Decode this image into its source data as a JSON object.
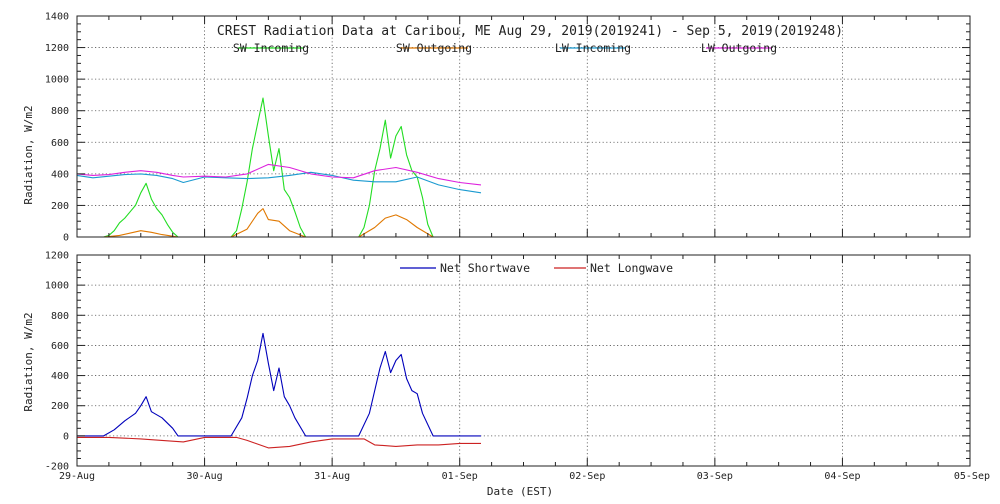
{
  "chart_data": [
    {
      "type": "line",
      "title": "CREST Radiation Data at Caribou, ME   Aug 29, 2019(2019241) - Sep  5, 2019(2019248)",
      "ylabel": "Radiation, W/m2",
      "xlabel": "",
      "ylim": [
        0,
        1400
      ],
      "yticks": [
        0,
        200,
        400,
        600,
        800,
        1000,
        1200,
        1400
      ],
      "xlim": [
        "2019-08-29",
        "2019-09-05"
      ],
      "grid": true,
      "legend_placement": "top",
      "series": [
        {
          "name": "SW Incoming",
          "color": "#22dd22",
          "x": [
            "2019-08-29T05:00",
            "2019-08-29T06:00",
            "2019-08-29T07:00",
            "2019-08-29T08:00",
            "2019-08-29T09:00",
            "2019-08-29T10:00",
            "2019-08-29T11:00",
            "2019-08-29T12:00",
            "2019-08-29T13:00",
            "2019-08-29T14:00",
            "2019-08-29T15:00",
            "2019-08-29T16:00",
            "2019-08-29T17:00",
            "2019-08-29T18:00",
            "2019-08-29T19:00",
            "2019-08-30T05:00",
            "2019-08-30T06:00",
            "2019-08-30T07:00",
            "2019-08-30T08:00",
            "2019-08-30T09:00",
            "2019-08-30T10:00",
            "2019-08-30T11:00",
            "2019-08-30T12:00",
            "2019-08-30T13:00",
            "2019-08-30T14:00",
            "2019-08-30T15:00",
            "2019-08-30T16:00",
            "2019-08-30T17:00",
            "2019-08-30T18:00",
            "2019-08-30T19:00",
            "2019-08-31T05:00",
            "2019-08-31T06:00",
            "2019-08-31T07:00",
            "2019-08-31T08:00",
            "2019-08-31T09:00",
            "2019-08-31T10:00",
            "2019-08-31T11:00",
            "2019-08-31T12:00",
            "2019-08-31T13:00",
            "2019-08-31T14:00",
            "2019-08-31T15:00",
            "2019-08-31T16:00",
            "2019-08-31T17:00",
            "2019-08-31T18:00",
            "2019-08-31T19:00"
          ],
          "values": [
            0,
            10,
            40,
            90,
            120,
            160,
            200,
            280,
            340,
            240,
            180,
            140,
            80,
            30,
            0,
            0,
            40,
            180,
            350,
            560,
            720,
            880,
            640,
            420,
            560,
            300,
            250,
            160,
            60,
            0,
            0,
            60,
            200,
            420,
            560,
            740,
            500,
            640,
            700,
            520,
            420,
            380,
            250,
            80,
            0
          ]
        },
        {
          "name": "SW Outgoing",
          "color": "#e07800",
          "x": [
            "2019-08-29T05:00",
            "2019-08-29T08:00",
            "2019-08-29T10:00",
            "2019-08-29T12:00",
            "2019-08-29T14:00",
            "2019-08-29T16:00",
            "2019-08-29T19:00",
            "2019-08-30T05:00",
            "2019-08-30T08:00",
            "2019-08-30T10:00",
            "2019-08-30T11:00",
            "2019-08-30T12:00",
            "2019-08-30T14:00",
            "2019-08-30T16:00",
            "2019-08-30T19:00",
            "2019-08-31T05:00",
            "2019-08-31T08:00",
            "2019-08-31T10:00",
            "2019-08-31T12:00",
            "2019-08-31T14:00",
            "2019-08-31T16:00",
            "2019-08-31T19:00"
          ],
          "values": [
            0,
            10,
            25,
            40,
            30,
            15,
            0,
            0,
            50,
            150,
            180,
            110,
            100,
            40,
            0,
            0,
            60,
            120,
            140,
            110,
            60,
            0
          ]
        },
        {
          "name": "LW Incoming",
          "color": "#1a9ad0",
          "x": [
            "2019-08-29T00:00",
            "2019-08-29T03:00",
            "2019-08-29T06:00",
            "2019-08-29T09:00",
            "2019-08-29T12:00",
            "2019-08-29T15:00",
            "2019-08-29T18:00",
            "2019-08-29T20:00",
            "2019-08-30T00:00",
            "2019-08-30T04:00",
            "2019-08-30T08:00",
            "2019-08-30T12:00",
            "2019-08-30T16:00",
            "2019-08-30T20:00",
            "2019-08-31T00:00",
            "2019-08-31T04:00",
            "2019-08-31T08:00",
            "2019-08-31T12:00",
            "2019-08-31T16:00",
            "2019-08-31T20:00",
            "2019-09-01T00:00",
            "2019-09-01T04:00"
          ],
          "values": [
            390,
            375,
            385,
            395,
            400,
            390,
            370,
            345,
            380,
            375,
            370,
            375,
            390,
            410,
            390,
            360,
            350,
            350,
            380,
            330,
            300,
            280
          ]
        },
        {
          "name": "LW Outgoing",
          "color": "#dd22dd",
          "x": [
            "2019-08-29T00:00",
            "2019-08-29T03:00",
            "2019-08-29T06:00",
            "2019-08-29T09:00",
            "2019-08-29T12:00",
            "2019-08-29T15:00",
            "2019-08-29T18:00",
            "2019-08-29T20:00",
            "2019-08-30T00:00",
            "2019-08-30T04:00",
            "2019-08-30T08:00",
            "2019-08-30T12:00",
            "2019-08-30T16:00",
            "2019-08-30T20:00",
            "2019-08-31T00:00",
            "2019-08-31T04:00",
            "2019-08-31T08:00",
            "2019-08-31T12:00",
            "2019-08-31T16:00",
            "2019-08-31T20:00",
            "2019-09-01T00:00",
            "2019-09-01T04:00"
          ],
          "values": [
            400,
            390,
            395,
            410,
            420,
            410,
            390,
            380,
            385,
            380,
            400,
            460,
            440,
            400,
            380,
            375,
            420,
            440,
            410,
            370,
            345,
            330
          ]
        }
      ]
    },
    {
      "type": "line",
      "title": "",
      "ylabel": "Radiation, W/m2",
      "xlabel": "Date (EST)",
      "ylim": [
        -200,
        1200
      ],
      "yticks": [
        -200,
        0,
        200,
        400,
        600,
        800,
        1000,
        1200
      ],
      "xlim": [
        "2019-08-29",
        "2019-09-05"
      ],
      "xticks": [
        "2019-08-29",
        "2019-08-30",
        "2019-08-31",
        "2019-09-01",
        "2019-09-02",
        "2019-09-03",
        "2019-09-04",
        "2019-09-05"
      ],
      "xtick_labels": [
        "29-Aug",
        "30-Aug",
        "31-Aug",
        "01-Sep",
        "02-Sep",
        "03-Sep",
        "04-Sep",
        "05-Sep"
      ],
      "grid": true,
      "legend_placement": "top",
      "series": [
        {
          "name": "Net Shortwave",
          "color": "#0000bb",
          "x": [
            "2019-08-29T00:00",
            "2019-08-29T05:00",
            "2019-08-29T07:00",
            "2019-08-29T09:00",
            "2019-08-29T11:00",
            "2019-08-29T12:00",
            "2019-08-29T13:00",
            "2019-08-29T14:00",
            "2019-08-29T16:00",
            "2019-08-29T18:00",
            "2019-08-29T19:00",
            "2019-08-30T05:00",
            "2019-08-30T07:00",
            "2019-08-30T08:00",
            "2019-08-30T09:00",
            "2019-08-30T10:00",
            "2019-08-30T11:00",
            "2019-08-30T12:00",
            "2019-08-30T13:00",
            "2019-08-30T14:00",
            "2019-08-30T15:00",
            "2019-08-30T16:00",
            "2019-08-30T17:00",
            "2019-08-30T19:00",
            "2019-08-31T05:00",
            "2019-08-31T07:00",
            "2019-08-31T08:00",
            "2019-08-31T09:00",
            "2019-08-31T10:00",
            "2019-08-31T11:00",
            "2019-08-31T12:00",
            "2019-08-31T13:00",
            "2019-08-31T14:00",
            "2019-08-31T15:00",
            "2019-08-31T16:00",
            "2019-08-31T17:00",
            "2019-08-31T19:00",
            "2019-09-01T04:00"
          ],
          "values": [
            0,
            0,
            40,
            100,
            150,
            200,
            260,
            160,
            120,
            50,
            0,
            0,
            120,
            250,
            400,
            500,
            680,
            480,
            300,
            450,
            260,
            200,
            120,
            0,
            0,
            150,
            300,
            450,
            560,
            420,
            500,
            540,
            380,
            300,
            280,
            150,
            0,
            0
          ]
        },
        {
          "name": "Net Longwave",
          "color": "#cc2222",
          "x": [
            "2019-08-29T00:00",
            "2019-08-29T06:00",
            "2019-08-29T12:00",
            "2019-08-29T16:00",
            "2019-08-29T20:00",
            "2019-08-30T00:00",
            "2019-08-30T06:00",
            "2019-08-30T08:00",
            "2019-08-30T12:00",
            "2019-08-30T16:00",
            "2019-08-30T20:00",
            "2019-08-31T00:00",
            "2019-08-31T06:00",
            "2019-08-31T08:00",
            "2019-08-31T12:00",
            "2019-08-31T16:00",
            "2019-08-31T20:00",
            "2019-09-01T00:00",
            "2019-09-01T04:00"
          ],
          "values": [
            -10,
            -10,
            -20,
            -30,
            -40,
            -10,
            -10,
            -30,
            -80,
            -70,
            -40,
            -20,
            -20,
            -60,
            -70,
            -60,
            -60,
            -50,
            -50
          ]
        }
      ]
    }
  ]
}
